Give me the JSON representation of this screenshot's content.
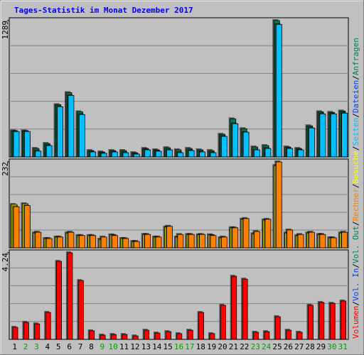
{
  "chart_data": {
    "type": "bar",
    "title": "Tages-Statistik im Monat Dezember 2017",
    "title_color": "#0000ff",
    "categories": [
      "1",
      "2",
      "3",
      "4",
      "5",
      "6",
      "7",
      "8",
      "9",
      "10",
      "11",
      "12",
      "13",
      "14",
      "15",
      "16",
      "17",
      "18",
      "19",
      "20",
      "21",
      "22",
      "23",
      "24",
      "25",
      "26",
      "27",
      "28",
      "29",
      "30",
      "31"
    ],
    "category_colors": [
      "#000000",
      "#00a000",
      "#00a000",
      "#000000",
      "#000000",
      "#000000",
      "#000000",
      "#000000",
      "#00a000",
      "#00a000",
      "#000000",
      "#000000",
      "#000000",
      "#000000",
      "#000000",
      "#00a000",
      "#00a000",
      "#000000",
      "#000000",
      "#000000",
      "#000000",
      "#000000",
      "#00a000",
      "#00a000",
      "#000000",
      "#000000",
      "#000000",
      "#000000",
      "#000000",
      "#00a000",
      "#00a000"
    ],
    "legend": [
      {
        "name": "Anfragen",
        "color": "#00805c"
      },
      {
        "name": "Dateien",
        "color": "#0040ff"
      },
      {
        "name": "Seiten",
        "color": "#00c0ff"
      },
      {
        "name": "Besuche",
        "color": "#ffff00"
      },
      {
        "name": "Rechner",
        "color": "#ff8000"
      },
      {
        "name": "Vol. Out",
        "color": "#00805c"
      },
      {
        "name": "Vol. In",
        "color": "#0040ff"
      },
      {
        "name": "Volumen",
        "color": "#ff0000"
      }
    ],
    "separator": "/",
    "panels": [
      {
        "ylim": [
          0,
          1289
        ],
        "yticks": [
          1289
        ],
        "grid": 5,
        "series": [
          {
            "name": "Anfragen",
            "color": "#00805c",
            "values": [
              247,
              247,
              80,
              127,
              494,
              608,
              427,
              60,
              47,
              60,
              60,
              40,
              80,
              67,
              87,
              67,
              80,
              67,
              60,
              214,
              360,
              267,
              94,
              107,
              1289,
              94,
              80,
              294,
              427,
              421,
              434
            ]
          },
          {
            "name": "Dateien",
            "color": "#00c0ff",
            "values": [
              240,
              240,
              55,
              107,
              474,
              581,
              401,
              47,
              34,
              47,
              40,
              27,
              67,
              54,
              67,
              40,
              60,
              47,
              40,
              194,
              314,
              234,
              67,
              80,
              1253,
              80,
              67,
              274,
              407,
              407,
              414
            ]
          }
        ]
      },
      {
        "ylim": [
          0,
          232
        ],
        "yticks": [
          232
        ],
        "grid": 5,
        "series": [
          {
            "name": "Besuche",
            "color": "#ffff00",
            "values": [
              117,
              119,
              40,
              25,
              29,
              40,
              33,
              33,
              23,
              35,
              25,
              17,
              36,
              29,
              56,
              29,
              36,
              35,
              35,
              27,
              54,
              77,
              38,
              75,
              222,
              40,
              33,
              40,
              36,
              27,
              40
            ]
          },
          {
            "name": "Rechner",
            "color": "#ff8000",
            "values": [
              111,
              114,
              42,
              25,
              29,
              42,
              33,
              33,
              29,
              33,
              25,
              17,
              36,
              29,
              58,
              36,
              36,
              36,
              33,
              29,
              54,
              79,
              44,
              77,
              232,
              48,
              36,
              42,
              36,
              27,
              42
            ]
          }
        ]
      },
      {
        "ylim": [
          0,
          4.24
        ],
        "yticks": [
          4.24
        ],
        "grid": 5,
        "series": [
          {
            "name": "Volumen",
            "color": "#ff0000",
            "values": [
              0.59,
              0.83,
              0.76,
              1.32,
              3.82,
              4.24,
              2.88,
              0.42,
              0.21,
              0.24,
              0.24,
              0.17,
              0.45,
              0.31,
              0.38,
              0.28,
              0.45,
              1.32,
              0.28,
              1.67,
              3.09,
              2.95,
              0.35,
              0.38,
              1.11,
              0.45,
              0.35,
              1.67,
              1.81,
              1.77,
              1.88
            ]
          }
        ]
      }
    ]
  }
}
